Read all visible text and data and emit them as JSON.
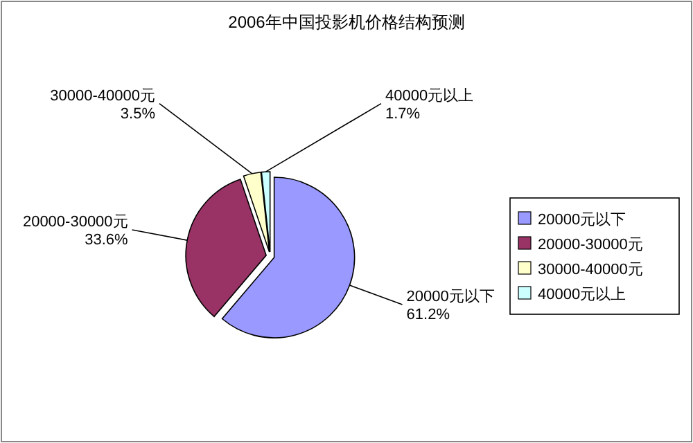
{
  "chart_data": {
    "type": "pie",
    "title": "2006年中国投影机价格结构预测",
    "categories": [
      "20000元以下",
      "20000-30000元",
      "30000-40000元",
      "40000元以上"
    ],
    "values": [
      61.2,
      33.6,
      3.5,
      1.7
    ],
    "value_labels": [
      "61.2%",
      "33.6%",
      "3.5%",
      "1.7%"
    ],
    "colors": [
      "#9999ff",
      "#993366",
      "#ffffcc",
      "#ccffff"
    ],
    "legend": "right"
  }
}
